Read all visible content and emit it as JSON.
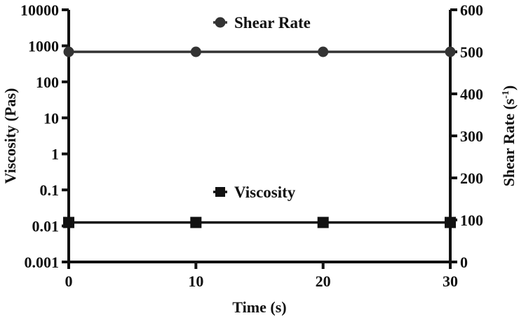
{
  "chart_data": {
    "type": "line",
    "title": "",
    "xlabel": "Time (s)",
    "ylabel_left": "Viscosity (Pas)",
    "ylabel_right_main": "Shear  Rate (s",
    "ylabel_right_sup": "-1",
    "ylabel_right_close": ")",
    "xlim": [
      0,
      30
    ],
    "x_ticks": [
      0,
      10,
      20,
      30
    ],
    "x_tick_labels": [
      "0",
      "10",
      "20",
      "30"
    ],
    "left_axis": {
      "scale": "log",
      "ylim": [
        0.001,
        10000
      ],
      "ticks": [
        0.001,
        0.01,
        0.1,
        1,
        10,
        100,
        1000,
        10000
      ],
      "tick_labels": [
        "0.001",
        "0.01",
        "0.1",
        "1",
        "10",
        "100",
        "1000",
        "10000"
      ]
    },
    "right_axis": {
      "scale": "linear",
      "ylim": [
        0,
        600
      ],
      "ticks": [
        0,
        100,
        200,
        300,
        400,
        500,
        600
      ],
      "tick_labels": [
        "0",
        "100",
        "200",
        "300",
        "400",
        "500",
        "600"
      ]
    },
    "grid": false,
    "series": [
      {
        "name": "Shear Rate",
        "axis": "right",
        "marker": "circle",
        "color": "#333333",
        "x": [
          0,
          10,
          20,
          30
        ],
        "values": [
          500,
          500,
          500,
          500
        ]
      },
      {
        "name": "Viscosity",
        "axis": "left",
        "marker": "square",
        "color": "#111111",
        "x": [
          0,
          10,
          20,
          30
        ],
        "values": [
          0.0125,
          0.0125,
          0.0125,
          0.0125
        ]
      }
    ],
    "legend": [
      {
        "series": "Shear Rate",
        "placement": "top-center"
      },
      {
        "series": "Viscosity",
        "placement": "lower-center"
      }
    ]
  }
}
